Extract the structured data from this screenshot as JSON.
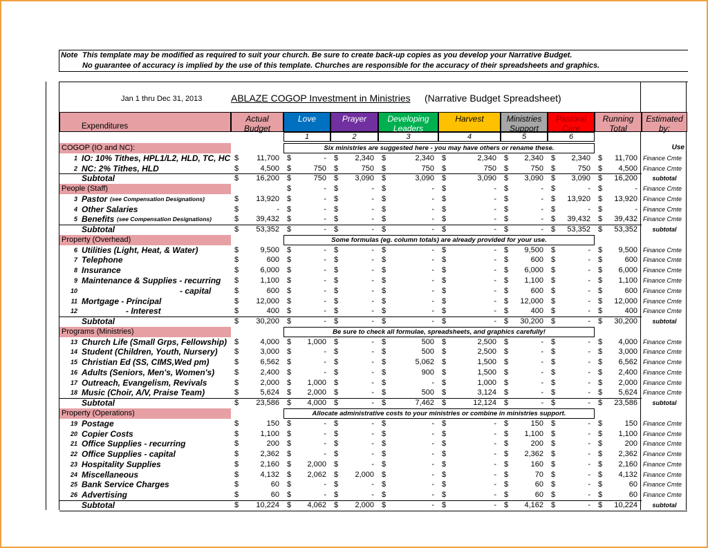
{
  "note": {
    "label": "Note",
    "lines": [
      "This template may be modified as required to suit your church.  Be sure to create back-up copies as you develop your Narrative Budget.",
      "No guarantee of accuracy is implied by the use of this template.  Churches are responsible for the accuracy of their spreadsheets and graphics."
    ]
  },
  "title": {
    "period": "Jan 1 thru Dec 31, 2013",
    "name": "ABLAZE COGOP  Investment in Ministries",
    "subtitle": "(Narrative Budget Spreadsheet)"
  },
  "currency": "$",
  "header": {
    "expenditures": "Expenditures",
    "columns": [
      "Actual Budget",
      "Love",
      "Prayer",
      "Developing Leaders",
      "Harvest",
      "Ministries Support",
      "Pastoral Care",
      "Running Total",
      "Estimated by:"
    ],
    "numbers": [
      "1",
      "2",
      "3",
      "4",
      "5",
      "6"
    ]
  },
  "sections": [
    {
      "title": "COGOP (IO and NC):",
      "banner": "Six ministries are suggested here - you may have others or rename these.",
      "use": "Use",
      "rows": [
        {
          "num": "1",
          "label": "IO: 10% Tithes, HPL1/L2, HLD, TC, HC",
          "values": [
            "11,700",
            "-",
            "2,340",
            "2,340",
            "2,340",
            "2,340",
            "2,340",
            "11,700"
          ],
          "estimate": "Finance Cmte"
        },
        {
          "num": "2",
          "label": "NC: 2% Tithes, HLD",
          "values": [
            "4,500",
            "750",
            "750",
            "750",
            "750",
            "750",
            "750",
            "4,500"
          ],
          "estimate": "Finance Cmte"
        }
      ],
      "subtotal": {
        "label": "Subtotal",
        "values": [
          "16,200",
          "750",
          "3,090",
          "3,090",
          "3,090",
          "3,090",
          "3,090",
          "16,200"
        ],
        "estimate": "subtotal"
      }
    },
    {
      "title": "People (Staff)",
      "header_values": [
        null,
        "-",
        "-",
        "-",
        "-",
        "-",
        "-",
        "-"
      ],
      "header_estimate": "Finance Cmte",
      "rows": [
        {
          "num": "3",
          "label": "Pastor",
          "note": "(see Compensation Designations)",
          "values": [
            "13,920",
            "-",
            "-",
            "-",
            "-",
            "-",
            "13,920",
            "13,920"
          ],
          "estimate": "Finance Cmte"
        },
        {
          "num": "4",
          "label": "Other Salaries",
          "values": [
            "-",
            "-",
            "-",
            "-",
            "-",
            "-",
            "-",
            "-"
          ],
          "estimate": "Finance Cmte"
        },
        {
          "num": "5",
          "label": "Benefits",
          "note": "(see Compensation Designations)",
          "values": [
            "39,432",
            "-",
            "-",
            "-",
            "-",
            "-",
            "39,432",
            "39,432"
          ],
          "estimate": "Finance Cmte"
        }
      ],
      "subtotal": {
        "label": "Subtotal",
        "values": [
          "53,352",
          "-",
          "-",
          "-",
          "-",
          "-",
          "53,352",
          "53,352"
        ],
        "estimate": "subtotal"
      }
    },
    {
      "title": "Property (Overhead)",
      "banner": "Some formulas (eg. column totals) are already provided for your use.",
      "rows": [
        {
          "num": "6",
          "label": "Utilities (Light, Heat, & Water)",
          "values": [
            "9,500",
            "-",
            "-",
            "-",
            "-",
            "9,500",
            "-",
            "9,500"
          ],
          "estimate": "Finance Cmte"
        },
        {
          "num": "7",
          "label": "Telephone",
          "values": [
            "600",
            "-",
            "-",
            "-",
            "-",
            "600",
            "-",
            "600"
          ],
          "estimate": "Finance Cmte"
        },
        {
          "num": "8",
          "label": "Insurance",
          "values": [
            "6,000",
            "-",
            "-",
            "-",
            "-",
            "6,000",
            "-",
            "6,000"
          ],
          "estimate": "Finance Cmte"
        },
        {
          "num": "9",
          "label": "Maintenance & Supplies - recurring",
          "values": [
            "1,100",
            "-",
            "-",
            "-",
            "-",
            "1,100",
            "-",
            "1,100"
          ],
          "estimate": "Finance Cmte"
        },
        {
          "num": "10",
          "label": "- capital",
          "values": [
            "600",
            "-",
            "-",
            "-",
            "-",
            "600",
            "-",
            "600"
          ],
          "estimate": "Finance Cmte"
        },
        {
          "num": "11",
          "label": "Mortgage  - Principal",
          "values": [
            "12,000",
            "-",
            "-",
            "-",
            "-",
            "12,000",
            "-",
            "12,000"
          ],
          "estimate": "Finance Cmte"
        },
        {
          "num": "12",
          "label": "- Interest",
          "values": [
            "400",
            "-",
            "-",
            "-",
            "-",
            "400",
            "-",
            "400"
          ],
          "estimate": "Finance Cmte"
        }
      ],
      "subtotal": {
        "label": "Subtotal",
        "values": [
          "30,200",
          "-",
          "-",
          "-",
          "-",
          "30,200",
          "-",
          "30,200"
        ],
        "estimate": "subtotal"
      }
    },
    {
      "title": "Programs (Ministries)",
      "banner": "Be sure to check all formulae, spreadsheets, and graphics carefully!",
      "rows": [
        {
          "num": "13",
          "label": "Church Life (Small Grps, Fellowship)",
          "values": [
            "4,000",
            "1,000",
            "-",
            "500",
            "2,500",
            "-",
            "-",
            "4,000"
          ],
          "estimate": "Finance Cmte"
        },
        {
          "num": "14",
          "label": "Student (Children, Youth, Nursery)",
          "values": [
            "3,000",
            "-",
            "-",
            "500",
            "2,500",
            "-",
            "-",
            "3,000"
          ],
          "estimate": "Finance Cmte"
        },
        {
          "num": "15",
          "label": "Christian Ed (SS, CIMS,Wed pm)",
          "values": [
            "6,562",
            "-",
            "-",
            "5,062",
            "1,500",
            "-",
            "-",
            "6,562"
          ],
          "estimate": "Finance Cmte"
        },
        {
          "num": "16",
          "label": "Adults (Seniors, Men's, Women's)",
          "values": [
            "2,400",
            "-",
            "-",
            "900",
            "1,500",
            "-",
            "-",
            "2,400"
          ],
          "estimate": "Finance Cmte"
        },
        {
          "num": "17",
          "label": "Outreach, Evangelism, Revivals",
          "values": [
            "2,000",
            "1,000",
            "-",
            "-",
            "1,000",
            "-",
            "-",
            "2,000"
          ],
          "estimate": "Finance Cmte"
        },
        {
          "num": "18",
          "label": "Music (Choir, A/V, Praise Team)",
          "values": [
            "5,624",
            "2,000",
            "-",
            "500",
            "3,124",
            "-",
            "-",
            "5,624"
          ],
          "estimate": "Finance Cmte"
        }
      ],
      "subtotal": {
        "label": "Subtotal",
        "values": [
          "23,586",
          "4,000",
          "-",
          "7,462",
          "12,124",
          "-",
          "-",
          "23,586"
        ],
        "estimate": "subtotal"
      }
    },
    {
      "title": "Property (Operations)",
      "banner": "Allocate administrative costs to your ministries or combine in ministries support.",
      "rows": [
        {
          "num": "19",
          "label": "Postage",
          "values": [
            "150",
            "-",
            "-",
            "-",
            "-",
            "150",
            "-",
            "150"
          ],
          "estimate": "Finance Cmte"
        },
        {
          "num": "20",
          "label": "Copier Costs",
          "values": [
            "1,100",
            "-",
            "-",
            "-",
            "-",
            "1,100",
            "-",
            "1,100"
          ],
          "estimate": "Finance Cmte"
        },
        {
          "num": "21",
          "label": "Office Supplies - recurring",
          "values": [
            "200",
            "-",
            "-",
            "-",
            "-",
            "200",
            "-",
            "200"
          ],
          "estimate": "Finance Cmte"
        },
        {
          "num": "22",
          "label": "Office Supplies - capital",
          "values": [
            "2,362",
            "-",
            "-",
            "-",
            "-",
            "2,362",
            "-",
            "2,362"
          ],
          "estimate": "Finance Cmte"
        },
        {
          "num": "23",
          "label": "Hospitality Supplies",
          "values": [
            "2,160",
            "2,000",
            "-",
            "-",
            "-",
            "160",
            "-",
            "2,160"
          ],
          "estimate": "Finance Cmte"
        },
        {
          "num": "24",
          "label": "Miscellaneous",
          "values": [
            "4,132",
            "2,062",
            "2,000",
            "-",
            "-",
            "70",
            "-",
            "4,132"
          ],
          "estimate": "Finance Cmte"
        },
        {
          "num": "25",
          "label": "Bank Service Charges",
          "values": [
            "60",
            "-",
            "-",
            "-",
            "-",
            "60",
            "-",
            "60"
          ],
          "estimate": "Finance Cmte"
        },
        {
          "num": "26",
          "label": "Advertising",
          "values": [
            "60",
            "-",
            "-",
            "-",
            "-",
            "60",
            "-",
            "60"
          ],
          "estimate": "Finance Cmte"
        }
      ],
      "subtotal": {
        "label": "Subtotal",
        "values": [
          "10,224",
          "4,062",
          "2,000",
          "-",
          "-",
          "4,162",
          "-",
          "10,224"
        ],
        "estimate": "subtotal"
      }
    }
  ]
}
